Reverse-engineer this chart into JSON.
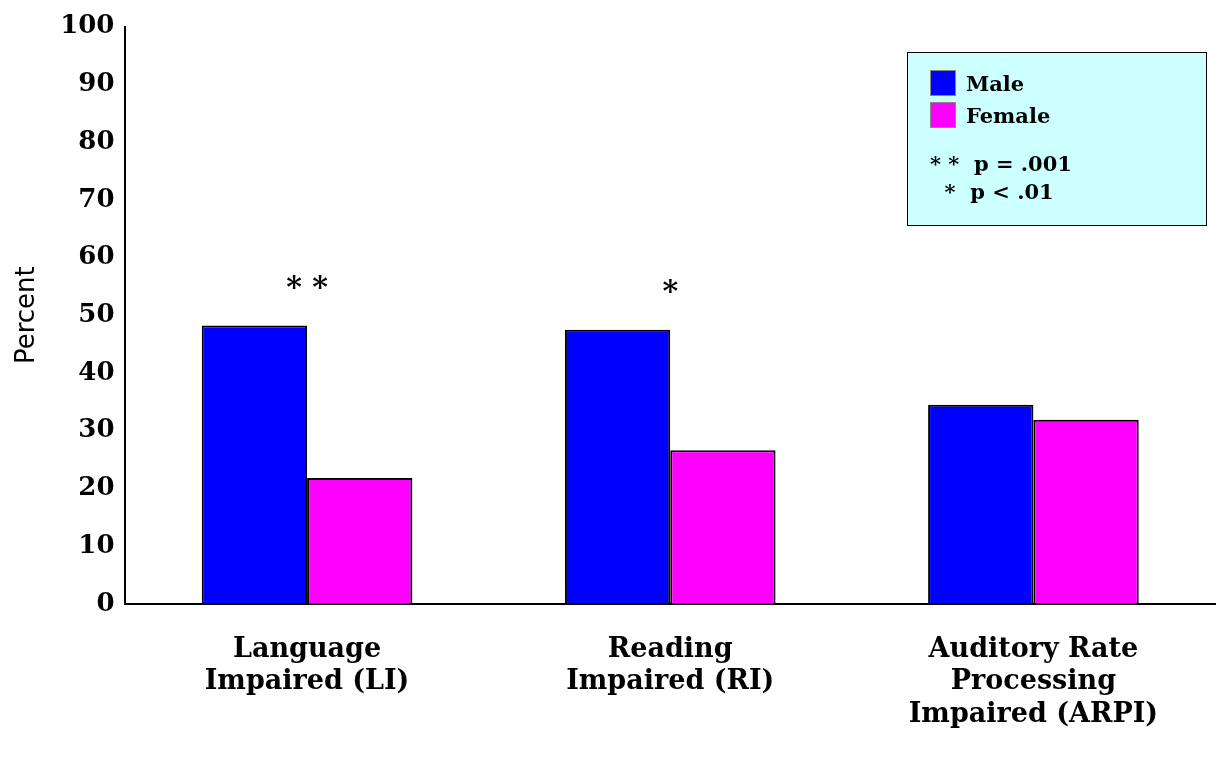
{
  "chart_data": {
    "type": "bar",
    "ylabel": "Percent",
    "categories": [
      "Language Impaired (LI)",
      "Reading Impaired (RI)",
      "Auditory Rate Processing Impaired (ARPI)"
    ],
    "series": [
      {
        "name": "Male",
        "color": "#0000ff",
        "values": [
          48.2,
          47.5,
          34.5
        ]
      },
      {
        "name": "Female",
        "color": "#ff00ff",
        "values": [
          21.8,
          26.6,
          31.9
        ]
      }
    ],
    "ylim": [
      0,
      100
    ],
    "yticks": [
      0,
      10,
      20,
      30,
      40,
      50,
      60,
      70,
      80,
      90,
      100
    ],
    "grid": false,
    "legend": "top right",
    "annotations": [
      "* *",
      "*",
      "* *  p = .001",
      "  *  p < .01"
    ]
  }
}
